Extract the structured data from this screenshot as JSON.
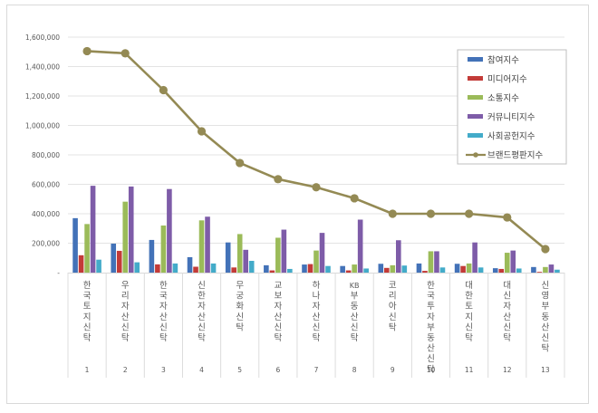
{
  "chart_data": {
    "type": "bar",
    "combo": "clustered-bar + line",
    "title": "",
    "xlabel": "",
    "ylabel": "",
    "ylim": [
      0,
      1600000
    ],
    "y_ticks": [
      {
        "value": 0,
        "label": "-"
      },
      {
        "value": 200000,
        "label": "200,000"
      },
      {
        "value": 400000,
        "label": "400,000"
      },
      {
        "value": 600000,
        "label": "600,000"
      },
      {
        "value": 800000,
        "label": "800,000"
      },
      {
        "value": 1000000,
        "label": "1,000,000"
      },
      {
        "value": 1200000,
        "label": "1,200,000"
      },
      {
        "value": 1400000,
        "label": "1,400,000"
      },
      {
        "value": 1600000,
        "label": "1,600,000"
      }
    ],
    "grid": true,
    "legend_position": "upper-right (inside plot)",
    "categories": [
      "한국토지신탁",
      "우리자산신탁",
      "한국자산신탁",
      "신한자산신탁",
      "무궁화신탁",
      "교보자산신탁",
      "하나자산신탁",
      "KB부동산신탁",
      "코리아신탁",
      "한국투자부동산신탁",
      "대한토지신탁",
      "대신자산신탁",
      "신영부동산신탁"
    ],
    "category_numbers": [
      "1",
      "2",
      "3",
      "4",
      "5",
      "6",
      "7",
      "8",
      "9",
      "10",
      "11",
      "12",
      "13"
    ],
    "series": [
      {
        "name": "참여지수",
        "type": "bar",
        "color": "#4372B8",
        "values": [
          370000,
          197000,
          222000,
          105000,
          205000,
          50000,
          55000,
          45000,
          60000,
          62000,
          60000,
          30000,
          38000
        ]
      },
      {
        "name": "미디어지수",
        "type": "bar",
        "color": "#C33B38",
        "values": [
          118000,
          148000,
          56000,
          40000,
          35000,
          15000,
          58000,
          15000,
          32000,
          12000,
          45000,
          25000,
          5000
        ]
      },
      {
        "name": "소통지수",
        "type": "bar",
        "color": "#9BBB59",
        "values": [
          330000,
          482000,
          320000,
          355000,
          262000,
          237000,
          150000,
          55000,
          50000,
          145000,
          62000,
          135000,
          38000
        ]
      },
      {
        "name": "커뮤니티지수",
        "type": "bar",
        "color": "#7E5CA8",
        "values": [
          590000,
          585000,
          568000,
          380000,
          155000,
          292000,
          270000,
          360000,
          220000,
          145000,
          205000,
          150000,
          55000
        ]
      },
      {
        "name": "사회공헌지수",
        "type": "bar",
        "color": "#43ABC9",
        "values": [
          88000,
          70000,
          62000,
          62000,
          80000,
          25000,
          45000,
          28000,
          48000,
          35000,
          35000,
          28000,
          20000
        ]
      },
      {
        "name": "브랜드평판지수",
        "type": "line",
        "color": "#948A54",
        "values": [
          1505000,
          1490000,
          1240000,
          960000,
          745000,
          635000,
          580000,
          505000,
          400000,
          400000,
          400000,
          375000,
          160000
        ]
      }
    ]
  }
}
